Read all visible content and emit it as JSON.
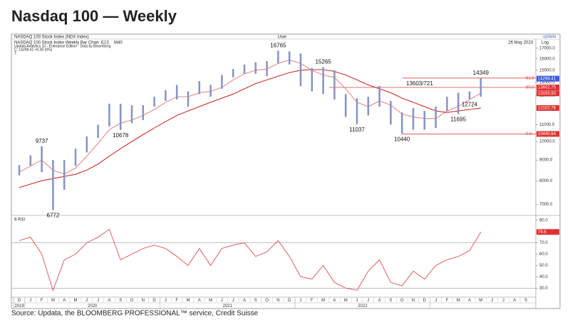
{
  "header": {
    "title": "Nasdaq 100 — Weekly",
    "source": "Source: Updata, the BLOOMBERG PROFESSIONAL™ service, Credit Suisse"
  },
  "terminal": {
    "instrument": "NASDAQ 100 Stock Index (NDX Index)",
    "user": "User",
    "brand": "updata",
    "chart_name": "NASDAQ 100 Stock Index Weekly Bar Chart",
    "date": "26 May 2023",
    "scale": "Log",
    "edition": "Updata Analytics 10 - Enterprise Edition · Data by Bloomberg",
    "quote": "C: 14298.41 +0.00 (0%)",
    "t": "T:"
  },
  "x_axis": {
    "years": [
      {
        "label": "2019",
        "months": [
          "D"
        ]
      },
      {
        "label": "2020",
        "months": [
          "J",
          "F",
          "M",
          "A",
          "M",
          "J",
          "J",
          "A",
          "S",
          "O",
          "N",
          "D"
        ]
      },
      {
        "label": "2021",
        "months": [
          "J",
          "F",
          "M",
          "A",
          "M",
          "J",
          "J",
          "A",
          "S",
          "O",
          "N",
          "D"
        ]
      },
      {
        "label": "2022",
        "months": [
          "J",
          "F",
          "M",
          "A",
          "M",
          "J",
          "J",
          "A",
          "S",
          "O",
          "N",
          "D"
        ]
      },
      {
        "label": null,
        "months": [
          "J",
          "F",
          "M",
          "A",
          "M",
          "J",
          "J",
          "A",
          "S"
        ]
      }
    ]
  },
  "chart_data": [
    {
      "type": "hilo",
      "log": true,
      "color": "#8593c4",
      "x": [
        "2019-12",
        "2020-01",
        "2020-02",
        "2020-03",
        "2020-04",
        "2020-05",
        "2020-06",
        "2020-07",
        "2020-08",
        "2020-09",
        "2020-10",
        "2020-11",
        "2020-12",
        "2021-01",
        "2021-02",
        "2021-03",
        "2021-04",
        "2021-05",
        "2021-06",
        "2021-07",
        "2021-08",
        "2021-09",
        "2021-10",
        "2021-11",
        "2021-12",
        "2022-01",
        "2022-02",
        "2022-03",
        "2022-04",
        "2022-05",
        "2022-06",
        "2022-07",
        "2022-08",
        "2022-09",
        "2022-10",
        "2022-11",
        "2022-12",
        "2023-01",
        "2023-02",
        "2023-03",
        "2023-04",
        "2023-05"
      ],
      "highs": [
        8750,
        9250,
        9737,
        9000,
        9000,
        9600,
        10300,
        11000,
        12400,
        12400,
        12300,
        12300,
        12900,
        13400,
        13800,
        13300,
        14100,
        13800,
        14600,
        15100,
        15500,
        15700,
        15800,
        16765,
        16700,
        16500,
        15200,
        15265,
        15000,
        13100,
        12800,
        12900,
        13721,
        12600,
        11800,
        12100,
        11900,
        12200,
        12900,
        13200,
        13300,
        14349
      ],
      "lows": [
        8250,
        8700,
        8400,
        6772,
        7600,
        8700,
        9400,
        10200,
        10900,
        10678,
        11100,
        11300,
        12200,
        12600,
        12700,
        12200,
        13100,
        12900,
        13500,
        14400,
        14700,
        14700,
        14500,
        15600,
        15500,
        13700,
        13300,
        13100,
        12700,
        11500,
        11037,
        11600,
        12200,
        11000,
        10440,
        10700,
        10700,
        10800,
        11900,
        11695,
        12724,
        12900
      ],
      "high_labels": [
        null,
        null,
        "9737",
        null,
        null,
        null,
        null,
        null,
        null,
        null,
        null,
        null,
        null,
        null,
        null,
        null,
        null,
        null,
        null,
        null,
        null,
        null,
        null,
        "16765",
        null,
        null,
        null,
        "15265",
        null,
        null,
        null,
        null,
        null,
        null,
        null,
        null,
        null,
        null,
        null,
        null,
        null,
        "14349"
      ],
      "low_labels": [
        null,
        null,
        null,
        "6772",
        null,
        null,
        null,
        null,
        null,
        "10678",
        null,
        null,
        null,
        null,
        null,
        null,
        null,
        null,
        null,
        null,
        null,
        null,
        null,
        null,
        null,
        null,
        null,
        null,
        null,
        null,
        "11037",
        null,
        null,
        null,
        "10440",
        null,
        null,
        null,
        null,
        "11695",
        "12724",
        null
      ],
      "lines": [
        {
          "name": "E13",
          "color": "#e58a8a",
          "values": [
            8400,
            8700,
            9000,
            8500,
            8300,
            8600,
            9200,
            9900,
            10700,
            11100,
            11300,
            11600,
            12000,
            12500,
            12900,
            12900,
            13200,
            13300,
            13600,
            14200,
            14700,
            15000,
            15100,
            15600,
            15900,
            15600,
            15000,
            14600,
            14400,
            13500,
            12500,
            12200,
            12600,
            12300,
            11700,
            11500,
            11400,
            11400,
            11900,
            12200,
            12700,
            13156
          ]
        },
        {
          "name": "M40",
          "color": "#c9302c",
          "values": [
            7700,
            7850,
            8000,
            8100,
            8200,
            8300,
            8500,
            8800,
            9200,
            9600,
            10000,
            10400,
            10800,
            11200,
            11600,
            11900,
            12200,
            12500,
            12800,
            13100,
            13500,
            13900,
            14200,
            14500,
            14800,
            15000,
            15050,
            15050,
            14900,
            14600,
            14200,
            13800,
            13500,
            13200,
            12800,
            12500,
            12200,
            11900,
            11800,
            11900,
            12000,
            12103
          ]
        }
      ],
      "levels": [
        {
          "label": "61.8",
          "value": 14349
        },
        {
          "label": "50.0",
          "value": 13603
        },
        {
          "label": "0.0",
          "value": 10440.64
        }
      ],
      "level_color": "#d9423f",
      "annotation": "13603/721",
      "ylim": [
        6650,
        17550
      ],
      "yticks": [
        {
          "value": 7000,
          "label": "7000.0"
        },
        {
          "value": 8000,
          "label": "8000.0"
        },
        {
          "value": 9000,
          "label": "9000.0"
        },
        {
          "value": 10000,
          "label": "10000.0"
        },
        {
          "value": 11000,
          "label": "11000.0"
        },
        {
          "value": 12000,
          "label": "12000.0"
        },
        {
          "value": 13000,
          "label": "13000.0"
        },
        {
          "value": 14000,
          "label": "14000.0"
        },
        {
          "value": 15000,
          "label": "15000.0"
        },
        {
          "value": 16000,
          "label": "16000.0"
        },
        {
          "value": 17000,
          "label": "17000.0"
        }
      ],
      "tags": [
        {
          "value": 14298.41,
          "color": "#3b5bdb"
        },
        {
          "value": 13602.75,
          "color": "#e03131"
        },
        {
          "value": 13155.93,
          "color": "#e03131"
        },
        {
          "value": 12102.76,
          "color": "#e03131"
        },
        {
          "value": 10440.64,
          "color": "#e03131"
        }
      ]
    },
    {
      "type": "line",
      "title": "9 RSI",
      "color": "#e06060",
      "values": [
        72,
        75,
        60,
        28,
        55,
        60,
        70,
        75,
        82,
        55,
        60,
        65,
        68,
        65,
        58,
        50,
        65,
        50,
        65,
        68,
        70,
        58,
        62,
        72,
        58,
        40,
        38,
        50,
        35,
        30,
        28,
        45,
        55,
        35,
        32,
        45,
        38,
        50,
        55,
        58,
        63,
        79.6
      ],
      "ylim": [
        22,
        93
      ],
      "yticks": [
        {
          "value": 30,
          "label": "30.0"
        },
        {
          "value": 40,
          "label": "40.0"
        },
        {
          "value": 50,
          "label": "50.0"
        },
        {
          "value": 60,
          "label": "60.0"
        },
        {
          "value": 70,
          "label": "70.0"
        },
        {
          "value": 90,
          "label": "90.0"
        }
      ],
      "levels": [
        70,
        30
      ],
      "tags": [
        {
          "value": 79.6,
          "color": "#e03131"
        }
      ]
    }
  ]
}
